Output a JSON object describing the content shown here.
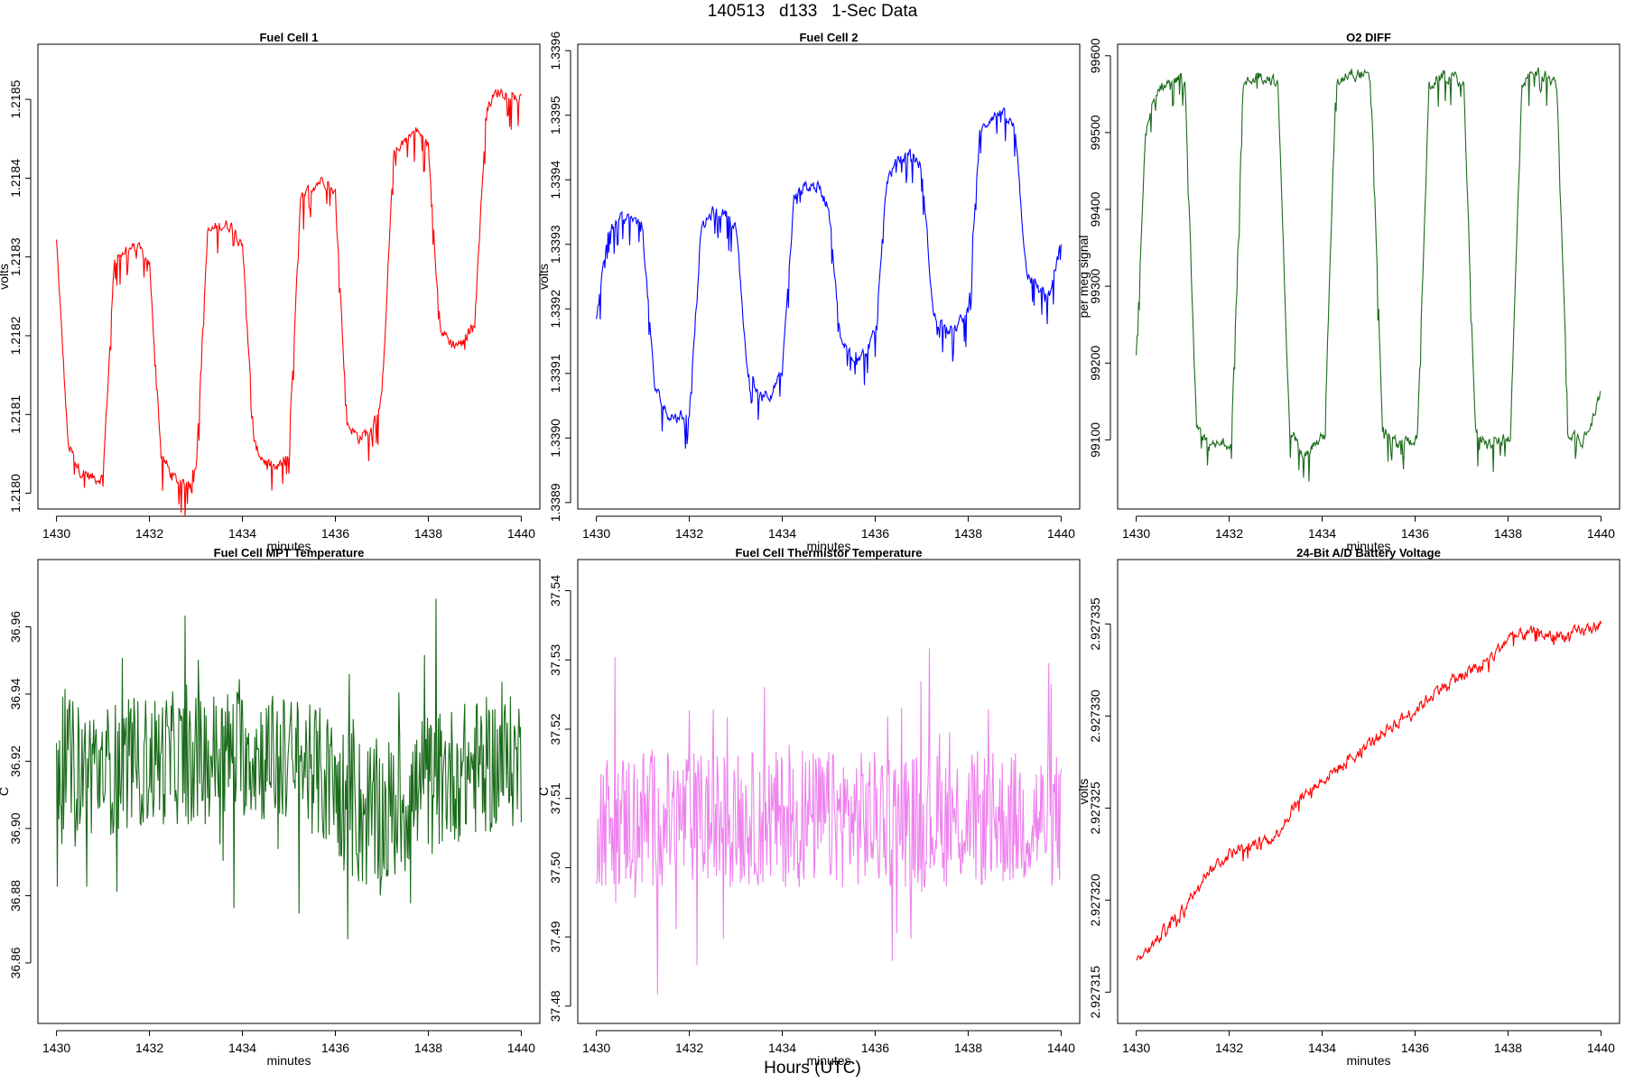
{
  "page_title": "140513   d133   1-Sec Data",
  "outer_xlabel": "Hours (UTC)",
  "chart_data": [
    {
      "type": "line",
      "title": "Fuel Cell 1",
      "xlabel": "minutes",
      "ylabel": "volts",
      "color": "#ff0000",
      "xlim": [
        1429.6,
        1440.4
      ],
      "ylim": [
        1.21798,
        1.21857
      ],
      "xticks": [
        1430,
        1432,
        1434,
        1436,
        1438,
        1440
      ],
      "xtick_labels": [
        "1430",
        "1432",
        "1434",
        "1436",
        "1438",
        "1440"
      ],
      "yticks": [
        1.218,
        1.2181,
        1.2182,
        1.2183,
        1.2184,
        1.2185
      ],
      "ytick_labels": [
        "1.2180",
        "1.2181",
        "1.2182",
        "1.2183",
        "1.2184",
        "1.2185"
      ],
      "series": [
        {
          "name": "Fuel Cell 1",
          "x": [
            1430.0,
            1430.25,
            1430.5,
            1430.75,
            1431.0,
            1431.25,
            1431.5,
            1431.75,
            1432.0,
            1432.25,
            1432.5,
            1432.75,
            1433.0,
            1433.25,
            1433.5,
            1433.75,
            1434.0,
            1434.25,
            1434.5,
            1434.75,
            1435.0,
            1435.25,
            1435.5,
            1435.75,
            1436.0,
            1436.25,
            1436.5,
            1436.75,
            1437.0,
            1437.25,
            1437.5,
            1437.75,
            1438.0,
            1438.25,
            1438.5,
            1438.75,
            1439.0,
            1439.25,
            1439.5,
            1439.75,
            1440.0
          ],
          "y": [
            1.21832,
            1.21806,
            1.21803,
            1.21802,
            1.21802,
            1.2183,
            1.21831,
            1.21831,
            1.21829,
            1.21805,
            1.21802,
            1.21801,
            1.21803,
            1.21833,
            1.21834,
            1.21834,
            1.21832,
            1.21806,
            1.21804,
            1.21803,
            1.21805,
            1.21837,
            1.21839,
            1.2184,
            1.21838,
            1.21809,
            1.21807,
            1.21808,
            1.21812,
            1.21843,
            1.21845,
            1.21846,
            1.21844,
            1.21821,
            1.21819,
            1.21819,
            1.21822,
            1.21849,
            1.21851,
            1.21851,
            1.2185
          ]
        }
      ]
    },
    {
      "type": "line",
      "title": "Fuel Cell 2",
      "xlabel": "minutes",
      "ylabel": "volts",
      "color": "#0000ff",
      "xlim": [
        1429.6,
        1440.4
      ],
      "ylim": [
        1.33889,
        1.33961
      ],
      "xticks": [
        1430,
        1432,
        1434,
        1436,
        1438,
        1440
      ],
      "xtick_labels": [
        "1430",
        "1432",
        "1434",
        "1436",
        "1438",
        "1440"
      ],
      "yticks": [
        1.3389,
        1.339,
        1.3391,
        1.3392,
        1.3393,
        1.3394,
        1.3395,
        1.3396
      ],
      "ytick_labels": [
        "1.3389",
        "1.3390",
        "1.3391",
        "1.3392",
        "1.3393",
        "1.3394",
        "1.3395",
        "1.3396"
      ],
      "series": [
        {
          "name": "Fuel Cell 2",
          "x": [
            1430.0,
            1430.25,
            1430.5,
            1430.75,
            1431.0,
            1431.25,
            1431.5,
            1431.75,
            1432.0,
            1432.25,
            1432.5,
            1432.75,
            1433.0,
            1433.25,
            1433.5,
            1433.75,
            1434.0,
            1434.25,
            1434.5,
            1434.75,
            1435.0,
            1435.25,
            1435.5,
            1435.75,
            1436.0,
            1436.25,
            1436.5,
            1436.75,
            1437.0,
            1437.25,
            1437.5,
            1437.75,
            1438.0,
            1438.25,
            1438.5,
            1438.75,
            1439.0,
            1439.25,
            1439.5,
            1439.75,
            1440.0
          ],
          "y": [
            1.33918,
            1.33932,
            1.33934,
            1.33934,
            1.33932,
            1.33908,
            1.33904,
            1.33903,
            1.33904,
            1.33932,
            1.33935,
            1.33935,
            1.33933,
            1.3391,
            1.33907,
            1.33907,
            1.3391,
            1.33937,
            1.33939,
            1.33939,
            1.33936,
            1.33915,
            1.33913,
            1.33913,
            1.33916,
            1.3394,
            1.33943,
            1.33944,
            1.33942,
            1.33919,
            1.33917,
            1.33917,
            1.3392,
            1.33947,
            1.3395,
            1.3395,
            1.33948,
            1.33926,
            1.33923,
            1.33922,
            1.3393
          ]
        }
      ]
    },
    {
      "type": "line",
      "title": "O2 DIFF",
      "xlabel": "minutes",
      "ylabel": "per meg signal",
      "color": "#1a6b1a",
      "xlim": [
        1429.6,
        1440.4
      ],
      "ylim": [
        99010,
        99615
      ],
      "xticks": [
        1430,
        1432,
        1434,
        1436,
        1438,
        1440
      ],
      "xtick_labels": [
        "1430",
        "1432",
        "1434",
        "1436",
        "1438",
        "1440"
      ],
      "yticks": [
        99100,
        99200,
        99300,
        99400,
        99500,
        99600
      ],
      "ytick_labels": [
        "99100",
        "99200",
        "99300",
        "99400",
        "99500",
        "99600"
      ],
      "series": [
        {
          "name": "O2 DIFF",
          "x": [
            1430.0,
            1430.2,
            1430.5,
            1430.9,
            1431.05,
            1431.3,
            1431.6,
            1431.95,
            1432.05,
            1432.3,
            1432.6,
            1432.9,
            1433.05,
            1433.3,
            1433.6,
            1433.95,
            1434.05,
            1434.3,
            1434.6,
            1434.9,
            1435.05,
            1435.3,
            1435.6,
            1435.95,
            1436.05,
            1436.3,
            1436.6,
            1436.9,
            1437.05,
            1437.3,
            1437.6,
            1437.95,
            1438.05,
            1438.3,
            1438.6,
            1438.9,
            1439.05,
            1439.3,
            1439.6,
            1440.0
          ],
          "y": [
            99205,
            99500,
            99560,
            99570,
            99560,
            99110,
            99090,
            99095,
            99100,
            99560,
            99575,
            99570,
            99560,
            99110,
            99085,
            99100,
            99105,
            99565,
            99580,
            99575,
            99565,
            99115,
            99095,
            99100,
            99105,
            99560,
            99575,
            99570,
            99560,
            99110,
            99095,
            99100,
            99105,
            99565,
            99580,
            99570,
            99560,
            99110,
            99100,
            99160
          ]
        }
      ]
    },
    {
      "type": "line",
      "title": "Fuel Cell MPT Temperature",
      "xlabel": "minutes",
      "ylabel": "C",
      "color": "#1a6b1a",
      "xlim": [
        1429.6,
        1440.4
      ],
      "ylim": [
        36.842,
        36.98
      ],
      "xticks": [
        1430,
        1432,
        1434,
        1436,
        1438,
        1440
      ],
      "xtick_labels": [
        "1430",
        "1432",
        "1434",
        "1436",
        "1438",
        "1440"
      ],
      "yticks": [
        36.86,
        36.88,
        36.9,
        36.92,
        36.94,
        36.96
      ],
      "ytick_labels": [
        "36.86",
        "36.88",
        "36.90",
        "36.92",
        "36.94",
        "36.96"
      ],
      "series": [
        {
          "name": "MPT Temperature",
          "x": [
            1430.0,
            1430.5,
            1431.0,
            1431.5,
            1432.0,
            1432.5,
            1433.0,
            1433.5,
            1434.0,
            1434.5,
            1435.0,
            1435.5,
            1436.0,
            1436.5,
            1437.0,
            1437.5,
            1438.0,
            1438.5,
            1439.0,
            1439.5,
            1440.0
          ],
          "y": [
            36.92,
            36.918,
            36.917,
            36.919,
            36.92,
            36.921,
            36.92,
            36.922,
            36.923,
            36.921,
            36.92,
            36.918,
            36.912,
            36.905,
            36.903,
            36.908,
            36.913,
            36.916,
            36.918,
            36.919,
            36.92
          ],
          "spread": [
            0.022,
            0.022,
            0.022,
            0.022,
            0.022,
            0.022,
            0.022,
            0.022,
            0.022,
            0.022,
            0.022,
            0.022,
            0.024,
            0.026,
            0.026,
            0.025,
            0.024,
            0.023,
            0.023,
            0.023,
            0.022
          ]
        }
      ]
    },
    {
      "type": "line",
      "title": "Fuel Cell Thermistor Temperature",
      "xlabel": "minutes",
      "ylabel": "C",
      "color": "#ee82ee",
      "xlim": [
        1429.6,
        1440.4
      ],
      "ylim": [
        37.4775,
        37.5445
      ],
      "xticks": [
        1430,
        1432,
        1434,
        1436,
        1438,
        1440
      ],
      "xtick_labels": [
        "1430",
        "1432",
        "1434",
        "1436",
        "1438",
        "1440"
      ],
      "yticks": [
        37.48,
        37.49,
        37.5,
        37.51,
        37.52,
        37.53,
        37.54
      ],
      "ytick_labels": [
        "37.48",
        "37.49",
        "37.50",
        "37.51",
        "37.52",
        "37.53",
        "37.54"
      ],
      "series": [
        {
          "name": "Thermistor Temperature",
          "x": [
            1430.0,
            1430.5,
            1431.0,
            1431.5,
            1432.0,
            1432.5,
            1433.0,
            1433.5,
            1434.0,
            1434.5,
            1435.0,
            1435.5,
            1436.0,
            1436.5,
            1437.0,
            1437.5,
            1438.0,
            1438.5,
            1439.0,
            1439.5,
            1440.0
          ],
          "y": [
            37.507,
            37.507,
            37.507,
            37.507,
            37.507,
            37.507,
            37.507,
            37.507,
            37.507,
            37.507,
            37.507,
            37.507,
            37.507,
            37.507,
            37.507,
            37.507,
            37.507,
            37.507,
            37.507,
            37.507,
            37.507
          ],
          "spread": [
            0.011,
            0.011,
            0.012,
            0.011,
            0.011,
            0.011,
            0.011,
            0.011,
            0.011,
            0.011,
            0.011,
            0.011,
            0.011,
            0.011,
            0.011,
            0.011,
            0.011,
            0.011,
            0.011,
            0.011,
            0.011
          ]
        }
      ]
    },
    {
      "type": "line",
      "title": "24-Bit A/D Battery Voltage",
      "xlabel": "minutes",
      "ylabel": "volts",
      "color": "#ff0000",
      "xlim": [
        1429.6,
        1440.4
      ],
      "ylim": [
        2.9273133,
        2.9273385
      ],
      "xticks": [
        1430,
        1432,
        1434,
        1436,
        1438,
        1440
      ],
      "xtick_labels": [
        "1430",
        "1432",
        "1434",
        "1436",
        "1438",
        "1440"
      ],
      "yticks": [
        2.927315,
        2.92732,
        2.927325,
        2.92733,
        2.927335
      ],
      "ytick_labels": [
        "2.927315",
        "2.927320",
        "2.927325",
        "2.927330",
        "2.927335"
      ],
      "series": [
        {
          "name": "Battery Voltage",
          "x": [
            1430.0,
            1430.5,
            1431.0,
            1431.5,
            1432.0,
            1432.5,
            1433.0,
            1433.5,
            1434.0,
            1434.5,
            1435.0,
            1435.5,
            1436.0,
            1436.5,
            1437.0,
            1437.5,
            1438.0,
            1438.5,
            1439.0,
            1439.5,
            1440.0
          ],
          "y": [
            2.9273165,
            2.927318,
            2.9273195,
            2.9273215,
            2.9273225,
            2.927323,
            2.9273235,
            2.9273255,
            2.9273265,
            2.9273275,
            2.9273285,
            2.9273295,
            2.9273303,
            2.9273315,
            2.9273322,
            2.9273328,
            2.9273342,
            2.9273345,
            2.9273343,
            2.9273345,
            2.927335
          ]
        }
      ]
    }
  ]
}
